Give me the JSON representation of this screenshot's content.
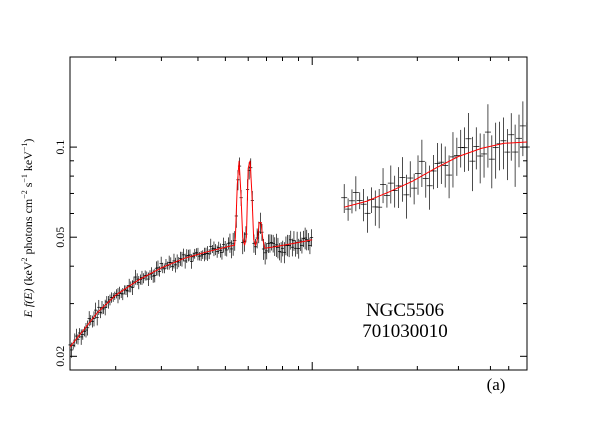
{
  "chart_data": {
    "type": "scatter",
    "ylabel_parts": [
      "E f(E)",
      " (keV",
      "2",
      " photons cm",
      "−2",
      " s",
      "−1",
      " keV",
      "−1",
      ")"
    ],
    "y_scale": "log",
    "ylim": [
      0.018,
      0.2
    ],
    "xlim": [
      0.0,
      1.0
    ],
    "y_ticks": [
      {
        "value": 0.02,
        "label": "0.02"
      },
      {
        "value": 0.05,
        "label": "0.05"
      },
      {
        "value": 0.1,
        "label": "0.1"
      }
    ],
    "annotations": [
      "NGC5506",
      "701030010"
    ],
    "panel_label": "(a)",
    "colors": {
      "data": "#000000",
      "model": "#ff0000",
      "axes": "#000000",
      "background": "#ffffff"
    },
    "series": [
      {
        "role": "data",
        "style": "crosses with error bars",
        "segments": [
          {
            "x_range": [
              0.0,
              0.53
            ],
            "sampling": "dense"
          },
          {
            "x_range": [
              0.6,
              1.0
            ],
            "sampling": "sparse"
          }
        ]
      },
      {
        "role": "model",
        "style": "line",
        "segments": [
          {
            "x": [
              0.0,
              0.03,
              0.06,
              0.1,
              0.15,
              0.2,
              0.25,
              0.3,
              0.35,
              0.36,
              0.362,
              0.366,
              0.37,
              0.374,
              0.378,
              0.382,
              0.386,
              0.39,
              0.394,
              0.398,
              0.402,
              0.406,
              0.41,
              0.414,
              0.418,
              0.422,
              0.426,
              0.43,
              0.45,
              0.5,
              0.53
            ],
            "y": [
              0.0215,
              0.0245,
              0.028,
              0.032,
              0.036,
              0.0395,
              0.0425,
              0.0447,
              0.0467,
              0.047,
              0.05,
              0.075,
              0.09,
              0.07,
              0.05,
              0.047,
              0.05,
              0.085,
              0.09,
              0.07,
              0.049,
              0.047,
              0.049,
              0.056,
              0.056,
              0.049,
              0.046,
              0.046,
              0.0465,
              0.048,
              0.049
            ]
          },
          {
            "x": [
              0.6,
              0.65,
              0.7,
              0.75,
              0.8,
              0.85,
              0.9,
              0.95,
              1.0
            ],
            "y": [
              0.063,
              0.066,
              0.071,
              0.077,
              0.085,
              0.093,
              0.099,
              0.103,
              0.104
            ]
          }
        ]
      }
    ]
  }
}
